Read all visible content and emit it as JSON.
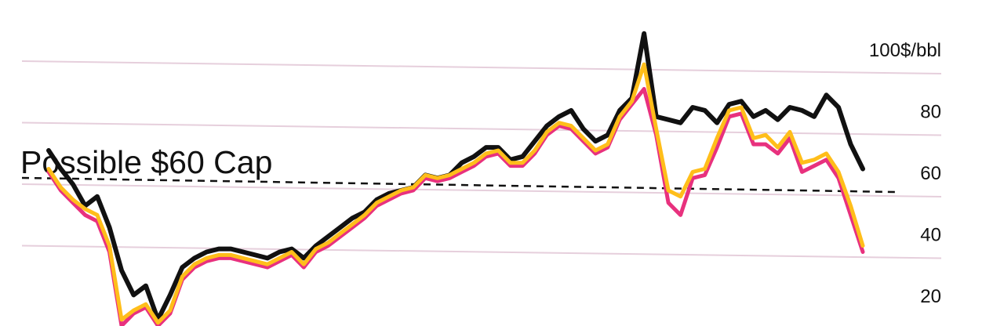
{
  "chart_data": {
    "type": "line",
    "title": "",
    "xlabel": "",
    "ylabel": "$/bbl",
    "ylim": [
      15,
      112
    ],
    "yticks": [
      20,
      40,
      60,
      80,
      100
    ],
    "ytick_labels": [
      "20",
      "40",
      "60",
      "80",
      "100$/bbl"
    ],
    "grid": true,
    "x": [
      0,
      4,
      8,
      12,
      16,
      20,
      24,
      28,
      32,
      36,
      40,
      44,
      48,
      52,
      56,
      60,
      64,
      68,
      72,
      76,
      80,
      84,
      88,
      92,
      96,
      100,
      104,
      108,
      112,
      116,
      120,
      124,
      128,
      132,
      136,
      140,
      144,
      148,
      152,
      156,
      160,
      164,
      168,
      172,
      176,
      180,
      184,
      188,
      192,
      196,
      200,
      204,
      208,
      212,
      216,
      220,
      224,
      228,
      232,
      236,
      240,
      244,
      248,
      252,
      256,
      260,
      264,
      268
    ],
    "series": [
      {
        "color": "#111111",
        "values": [
          73,
          67,
          62,
          55,
          58,
          48,
          34,
          26,
          29,
          18,
          26,
          35,
          38,
          40,
          41,
          41,
          40,
          39,
          38,
          40,
          41,
          38,
          42,
          45,
          48,
          51,
          53,
          57,
          59,
          60,
          61,
          65,
          64,
          65,
          69,
          71,
          74,
          74,
          70,
          71,
          76,
          81,
          84,
          86,
          80,
          76,
          78,
          86,
          90,
          111,
          84,
          83,
          82,
          87,
          86,
          82,
          88,
          89,
          84,
          86,
          83,
          87,
          86,
          84,
          91,
          87,
          75,
          67
        ]
      },
      {
        "color": "#e8317e",
        "values": [
          66,
          60,
          56,
          52,
          50,
          40,
          16,
          20,
          22,
          16,
          20,
          31,
          35,
          37,
          38,
          38,
          37,
          36,
          35,
          37,
          39,
          35,
          40,
          42,
          45,
          48,
          51,
          55,
          57,
          59,
          60,
          64,
          63,
          64,
          66,
          68,
          71,
          72,
          68,
          68,
          72,
          78,
          81,
          80,
          76,
          72,
          74,
          83,
          88,
          93,
          78,
          56,
          52,
          64,
          65,
          74,
          84,
          85,
          75,
          75,
          72,
          77,
          66,
          68,
          70,
          64,
          52,
          40
        ]
      },
      {
        "color": "#ffbe1a",
        "values": [
          67,
          61,
          57,
          54,
          52,
          42,
          18,
          21,
          23,
          17,
          21,
          32,
          36,
          38,
          39,
          39,
          38,
          37,
          36,
          38,
          40,
          36,
          41,
          43,
          46,
          49,
          52,
          56,
          58,
          60,
          61,
          65,
          64,
          65,
          67,
          69,
          72,
          73,
          69,
          69,
          73,
          79,
          82,
          81,
          77,
          73,
          75,
          84,
          89,
          101,
          80,
          60,
          58,
          66,
          67,
          77,
          86,
          87,
          77,
          78,
          74,
          79,
          69,
          70,
          72,
          66,
          55,
          42
        ]
      }
    ],
    "annotations": [
      {
        "text": "Possible $60 Cap",
        "value": 60,
        "style": "dashed"
      }
    ]
  }
}
